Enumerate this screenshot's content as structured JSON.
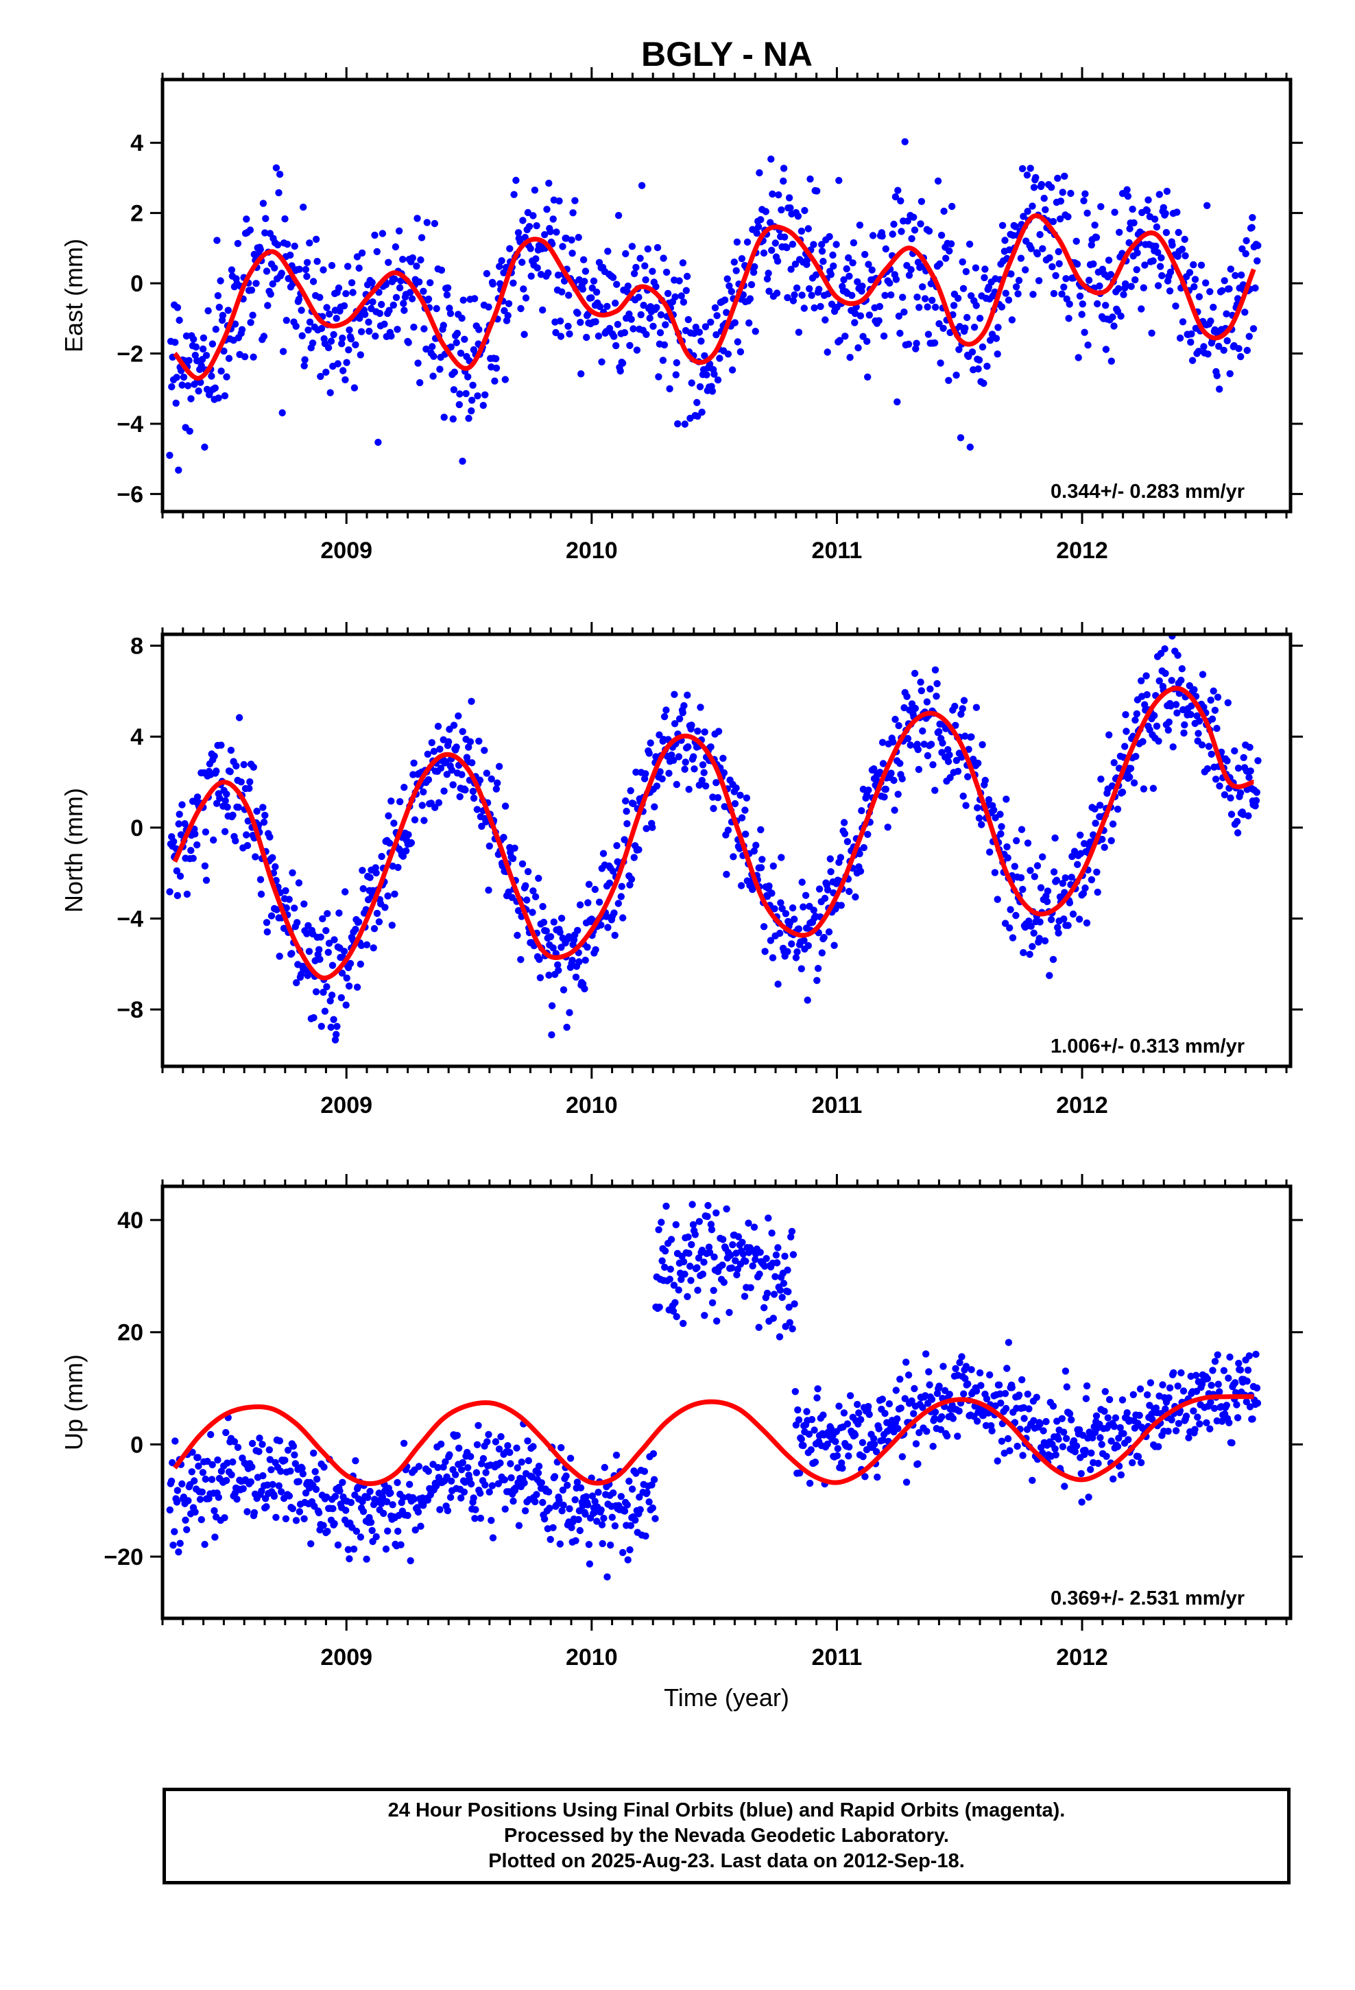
{
  "title": "BGLY - NA",
  "footer": {
    "line1": "24 Hour Positions Using Final Orbits (blue) and Rapid Orbits (magenta).",
    "line2": "Processed by the Nevada Geodetic Laboratory.",
    "line3": "Plotted on 2025-Aug-23. Last data on 2012-Sep-18."
  },
  "colors": {
    "points": "#0000ff",
    "model": "#ff0000",
    "axes": "#000000"
  },
  "chart_data": [
    {
      "type": "scatter",
      "ylabel": "East (mm)",
      "xlabel": "",
      "xlim": [
        2008.25,
        2012.85
      ],
      "ylim": [
        -6.5,
        5.8
      ],
      "xticks": [
        2009,
        2010,
        2011,
        2012
      ],
      "xtick_labels": [
        "2009",
        "2010",
        "2011",
        "2012"
      ],
      "yticks": [
        -6,
        -4,
        -2,
        0,
        2,
        4
      ],
      "ytick_labels": [
        "−6",
        "−4",
        "−2",
        "0",
        "2",
        "4"
      ],
      "rate_label": "0.344+/- 0.283 mm/yr",
      "model": {
        "x": [
          2008.3,
          2008.4,
          2008.5,
          2008.6,
          2008.7,
          2008.8,
          2008.9,
          2009.0,
          2009.1,
          2009.2,
          2009.3,
          2009.4,
          2009.5,
          2009.6,
          2009.7,
          2009.8,
          2009.9,
          2010.0,
          2010.1,
          2010.2,
          2010.3,
          2010.4,
          2010.5,
          2010.6,
          2010.7,
          2010.8,
          2010.9,
          2011.0,
          2011.1,
          2011.2,
          2011.3,
          2011.4,
          2011.5,
          2011.6,
          2011.7,
          2011.8,
          2011.9,
          2012.0,
          2012.1,
          2012.2,
          2012.3,
          2012.4,
          2012.5,
          2012.6,
          2012.7
        ],
        "y": [
          -2.0,
          -2.7,
          -1.6,
          0.2,
          0.9,
          0.0,
          -1.1,
          -1.1,
          -0.3,
          0.3,
          -0.4,
          -1.8,
          -2.4,
          -1.0,
          0.9,
          1.2,
          0.2,
          -0.8,
          -0.8,
          -0.1,
          -0.6,
          -2.1,
          -2.0,
          -0.3,
          1.4,
          1.5,
          0.7,
          -0.4,
          -0.5,
          0.4,
          1.0,
          0.1,
          -1.6,
          -1.4,
          0.5,
          1.9,
          1.3,
          0.0,
          -0.2,
          1.0,
          1.4,
          0.2,
          -1.4,
          -1.3,
          0.4
        ]
      },
      "seasonal_anchors": {
        "x": [
          2008.3,
          2008.4,
          2008.5,
          2008.6,
          2008.7,
          2008.8,
          2008.9,
          2009.0,
          2009.1,
          2009.2,
          2009.3,
          2009.4,
          2009.5,
          2009.6,
          2009.7,
          2009.8,
          2009.9,
          2010.0,
          2010.1,
          2010.2,
          2010.3,
          2010.4,
          2010.5,
          2010.6,
          2010.7,
          2010.8,
          2010.9,
          2011.0,
          2011.1,
          2011.2,
          2011.3,
          2011.4,
          2011.5,
          2011.6,
          2011.7,
          2011.8,
          2011.9,
          2012.0,
          2012.1,
          2012.2,
          2012.3,
          2012.4,
          2012.5,
          2012.6,
          2012.7
        ],
        "y": [
          -2.0,
          -2.7,
          -1.6,
          0.2,
          0.9,
          0.0,
          -1.1,
          -1.1,
          -0.3,
          0.3,
          -0.4,
          -1.8,
          -2.4,
          -1.0,
          0.9,
          1.2,
          0.2,
          -0.8,
          -0.8,
          -0.1,
          -0.6,
          -2.1,
          -2.0,
          -0.3,
          1.4,
          1.5,
          0.7,
          -0.4,
          -0.5,
          0.4,
          1.0,
          0.1,
          -1.6,
          -1.4,
          0.5,
          1.9,
          1.3,
          0.0,
          -0.2,
          1.0,
          1.4,
          0.2,
          -1.4,
          -1.3,
          0.4
        ]
      }
    },
    {
      "type": "scatter",
      "ylabel": "North (mm)",
      "xlabel": "",
      "xlim": [
        2008.25,
        2012.85
      ],
      "ylim": [
        -10.5,
        8.5
      ],
      "xticks": [
        2009,
        2010,
        2011,
        2012
      ],
      "xtick_labels": [
        "2009",
        "2010",
        "2011",
        "2012"
      ],
      "yticks": [
        -8,
        -4,
        0,
        4,
        8
      ],
      "ytick_labels": [
        "−8",
        "−4",
        "0",
        "4",
        "8"
      ],
      "rate_label": "1.006+/- 0.313 mm/yr",
      "model": {
        "x": [
          2008.3,
          2008.4,
          2008.5,
          2008.6,
          2008.7,
          2008.8,
          2008.9,
          2009.0,
          2009.1,
          2009.2,
          2009.3,
          2009.4,
          2009.5,
          2009.6,
          2009.7,
          2009.8,
          2009.9,
          2010.0,
          2010.1,
          2010.2,
          2010.3,
          2010.4,
          2010.5,
          2010.6,
          2010.7,
          2010.8,
          2010.9,
          2011.0,
          2011.1,
          2011.2,
          2011.3,
          2011.4,
          2011.5,
          2011.6,
          2011.7,
          2011.8,
          2011.9,
          2012.0,
          2012.1,
          2012.2,
          2012.3,
          2012.4,
          2012.5,
          2012.6,
          2012.7
        ],
        "y": [
          -1.5,
          0.8,
          2.0,
          0.8,
          -2.5,
          -5.2,
          -6.6,
          -5.8,
          -3.6,
          -0.7,
          2.0,
          3.2,
          2.5,
          0.0,
          -3.0,
          -5.4,
          -5.6,
          -4.5,
          -2.4,
          0.8,
          3.4,
          4.0,
          2.8,
          -0.2,
          -3.2,
          -4.5,
          -4.6,
          -3.0,
          -0.3,
          2.5,
          4.5,
          5.0,
          3.8,
          1.0,
          -2.2,
          -3.7,
          -3.5,
          -2.0,
          0.6,
          3.4,
          5.5,
          6.1,
          4.8,
          2.0,
          2.0
        ]
      }
    },
    {
      "type": "scatter",
      "ylabel": "Up (mm)",
      "xlabel": "Time (year)",
      "xlim": [
        2008.25,
        2012.85
      ],
      "ylim": [
        -31,
        46
      ],
      "xticks": [
        2009,
        2010,
        2011,
        2012
      ],
      "xtick_labels": [
        "2009",
        "2010",
        "2011",
        "2012"
      ],
      "yticks": [
        -20,
        0,
        20,
        40
      ],
      "ytick_labels": [
        "−20",
        "0",
        "20",
        "40"
      ],
      "rate_label": "0.369+/- 2.531 mm/yr",
      "model": {
        "x": [
          2008.3,
          2008.4,
          2008.5,
          2008.6,
          2008.7,
          2008.8,
          2008.9,
          2009.0,
          2009.1,
          2009.2,
          2009.3,
          2009.4,
          2009.5,
          2009.6,
          2009.7,
          2009.8,
          2009.9,
          2010.0,
          2010.1,
          2010.2,
          2010.3,
          2010.4,
          2010.5,
          2010.6,
          2010.7,
          2010.8,
          2010.9,
          2011.0,
          2011.1,
          2011.2,
          2011.3,
          2011.4,
          2011.5,
          2011.6,
          2011.7,
          2011.8,
          2011.9,
          2012.0,
          2012.1,
          2012.2,
          2012.3,
          2012.4,
          2012.5,
          2012.6,
          2012.7
        ],
        "y": [
          -4.2,
          1.5,
          5.2,
          6.6,
          6.3,
          3.5,
          -1.2,
          -5.5,
          -7.0,
          -5.2,
          0.0,
          4.8,
          7.0,
          7.3,
          5.2,
          1.0,
          -3.8,
          -6.8,
          -5.8,
          -1.2,
          3.8,
          6.8,
          7.6,
          6.3,
          2.5,
          -2.0,
          -5.5,
          -6.8,
          -5.0,
          -1.0,
          3.5,
          6.8,
          8.0,
          7.0,
          3.8,
          -1.0,
          -4.8,
          -6.3,
          -4.5,
          -0.8,
          3.8,
          6.8,
          8.3,
          8.5,
          8.5
        ]
      },
      "segments": [
        {
          "x0": 2008.28,
          "x1": 2010.26,
          "mean_shift": -8.5,
          "amp": 6,
          "spread": 4
        },
        {
          "x0": 2010.26,
          "x1": 2010.83,
          "mean_shift": 29,
          "amp": 5,
          "spread": 5
        },
        {
          "x0": 2010.83,
          "x1": 2012.72,
          "mean_shift": 3.5,
          "amp": 6,
          "spread": 4
        }
      ]
    }
  ]
}
